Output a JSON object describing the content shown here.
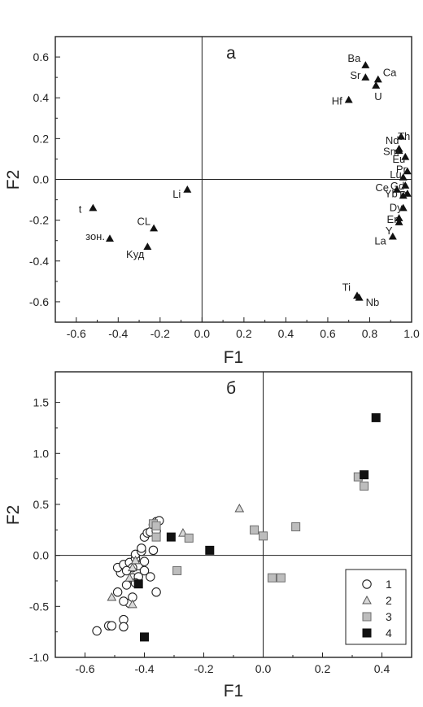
{
  "chart_data": [
    {
      "type": "scatter",
      "panel_letter": "а",
      "xlabel": "F1",
      "ylabel": "F2",
      "xlim": [
        -0.7,
        1.0
      ],
      "ylim": [
        -0.7,
        0.7
      ],
      "xticks": [
        "-0.6",
        "-0.4",
        "-0.2",
        "0.0",
        "0.2",
        "0.4",
        "0.6",
        "0.8",
        "1.0"
      ],
      "xtick_values": [
        -0.6,
        -0.4,
        -0.2,
        0.0,
        0.2,
        0.4,
        0.6,
        0.8,
        1.0
      ],
      "yticks": [
        "0.6",
        "0.4",
        "0.2",
        "0.0",
        "-0.2",
        "-0.4",
        "-0.6"
      ],
      "ytick_values": [
        0.6,
        0.4,
        0.2,
        0.0,
        -0.2,
        -0.4,
        -0.6
      ],
      "zero_lines": true,
      "grid": false,
      "points": [
        {
          "label": "Ba",
          "x": 0.78,
          "y": 0.56,
          "anchor": "end",
          "dx": -6,
          "dy": -4
        },
        {
          "label": "Ca",
          "x": 0.84,
          "y": 0.49,
          "anchor": "start",
          "dx": 6,
          "dy": -4
        },
        {
          "label": "Sr",
          "x": 0.78,
          "y": 0.5,
          "anchor": "end",
          "dx": -6,
          "dy": 2
        },
        {
          "label": "U",
          "x": 0.83,
          "y": 0.46,
          "anchor": "start",
          "dx": -2,
          "dy": 18
        },
        {
          "label": "Hf",
          "x": 0.7,
          "y": 0.39,
          "anchor": "end",
          "dx": -8,
          "dy": 6
        },
        {
          "label": "Th",
          "x": 0.95,
          "y": 0.21,
          "anchor": "start",
          "dx": -4,
          "dy": 4
        },
        {
          "label": "Nd",
          "x": 0.94,
          "y": 0.15,
          "anchor": "end",
          "dx": 0,
          "dy": -6
        },
        {
          "label": "Sm",
          "x": 0.94,
          "y": 0.14,
          "anchor": "end",
          "dx": 0,
          "dy": 5
        },
        {
          "label": "Eu",
          "x": 0.97,
          "y": 0.11,
          "anchor": "end",
          "dx": 0,
          "dy": 7
        },
        {
          "label": "Pr",
          "x": 0.98,
          "y": 0.04,
          "anchor": "end",
          "dx": -1,
          "dy": 2
        },
        {
          "label": "Lu",
          "x": 0.96,
          "y": 0.01,
          "anchor": "end",
          "dx": -2,
          "dy": 1
        },
        {
          "label": "Gd",
          "x": 0.97,
          "y": -0.03,
          "anchor": "end",
          "dx": -1,
          "dy": 5
        },
        {
          "label": "Ce",
          "x": 0.93,
          "y": -0.05,
          "anchor": "end",
          "dx": -10,
          "dy": 2
        },
        {
          "label": "P",
          "x": 0.98,
          "y": -0.07,
          "anchor": "end",
          "dx": -1,
          "dy": 6
        },
        {
          "label": "Yb",
          "x": 0.96,
          "y": -0.08,
          "anchor": "end",
          "dx": -7,
          "dy": 2
        },
        {
          "label": "Dy",
          "x": 0.96,
          "y": -0.14,
          "anchor": "end",
          "dx": -1,
          "dy": 4
        },
        {
          "label": "Er",
          "x": 0.94,
          "y": -0.19,
          "anchor": "end",
          "dx": -2,
          "dy": 6
        },
        {
          "label": "Y",
          "x": 0.94,
          "y": -0.21,
          "anchor": "end",
          "dx": -8,
          "dy": 15
        },
        {
          "label": "La",
          "x": 0.91,
          "y": -0.28,
          "anchor": "end",
          "dx": -8,
          "dy": 10
        },
        {
          "label": "Ti",
          "x": 0.74,
          "y": -0.57,
          "anchor": "end",
          "dx": -8,
          "dy": -6
        },
        {
          "label": "Nb",
          "x": 0.75,
          "y": -0.58,
          "anchor": "start",
          "dx": 8,
          "dy": 10
        },
        {
          "label": "Li",
          "x": -0.07,
          "y": -0.05,
          "anchor": "end",
          "dx": -8,
          "dy": 10
        },
        {
          "label": "t",
          "x": -0.52,
          "y": -0.14,
          "anchor": "end",
          "dx": -14,
          "dy": 6
        },
        {
          "label": "CL",
          "x": -0.23,
          "y": -0.24,
          "anchor": "end",
          "dx": -4,
          "dy": -4
        },
        {
          "label": "зон.",
          "x": -0.44,
          "y": -0.29,
          "anchor": "end",
          "dx": -6,
          "dy": 2
        },
        {
          "label": "Kуд",
          "x": -0.26,
          "y": -0.33,
          "anchor": "end",
          "dx": -4,
          "dy": 14
        }
      ]
    },
    {
      "type": "scatter",
      "panel_letter": "б",
      "xlabel": "F1",
      "ylabel": "F2",
      "xlim": [
        -0.7,
        0.5
      ],
      "ylim": [
        -1.0,
        1.8
      ],
      "xticks": [
        "-0.6",
        "-0.4",
        "-0.2",
        "0.0",
        "0.2",
        "0.4"
      ],
      "xtick_values": [
        -0.6,
        -0.4,
        -0.2,
        0.0,
        0.2,
        0.4
      ],
      "yticks": [
        "1.5",
        "1.0",
        "0.5",
        "0.0",
        "-0.5",
        "-1.0"
      ],
      "ytick_values": [
        1.5,
        1.0,
        0.5,
        0.0,
        -0.5,
        -1.0
      ],
      "zero_lines": true,
      "grid": false,
      "legend_position": "bottom-right",
      "series": [
        {
          "name": "1",
          "marker": "circle-open",
          "points": [
            [
              -0.56,
              -0.74
            ],
            [
              -0.52,
              -0.69
            ],
            [
              -0.51,
              -0.69
            ],
            [
              -0.47,
              -0.63
            ],
            [
              -0.47,
              -0.7
            ],
            [
              -0.45,
              -0.47
            ],
            [
              -0.47,
              -0.45
            ],
            [
              -0.44,
              -0.41
            ],
            [
              -0.49,
              -0.36
            ],
            [
              -0.46,
              -0.29
            ],
            [
              -0.44,
              -0.22
            ],
            [
              -0.48,
              -0.17
            ],
            [
              -0.49,
              -0.12
            ],
            [
              -0.47,
              -0.09
            ],
            [
              -0.45,
              -0.07
            ],
            [
              -0.43,
              -0.03
            ],
            [
              -0.43,
              0.01
            ],
            [
              -0.41,
              0.04
            ],
            [
              -0.41,
              0.07
            ],
            [
              -0.42,
              -0.1
            ],
            [
              -0.4,
              -0.06
            ],
            [
              -0.4,
              -0.15
            ],
            [
              -0.42,
              -0.21
            ],
            [
              -0.38,
              -0.21
            ],
            [
              -0.37,
              0.05
            ],
            [
              -0.4,
              0.18
            ],
            [
              -0.39,
              0.22
            ],
            [
              -0.38,
              0.23
            ],
            [
              -0.36,
              0.24
            ],
            [
              -0.37,
              0.3
            ],
            [
              -0.36,
              0.33
            ],
            [
              -0.35,
              0.34
            ],
            [
              -0.36,
              -0.36
            ],
            [
              -0.44,
              -0.12
            ],
            [
              -0.46,
              -0.15
            ],
            [
              -0.43,
              -0.27
            ]
          ]
        },
        {
          "name": "2",
          "marker": "triangle-open",
          "points": [
            [
              -0.51,
              -0.41
            ],
            [
              -0.44,
              -0.48
            ],
            [
              -0.45,
              -0.22
            ],
            [
              -0.44,
              -0.12
            ],
            [
              -0.43,
              -0.05
            ],
            [
              -0.27,
              0.22
            ],
            [
              -0.08,
              0.46
            ]
          ]
        },
        {
          "name": "3",
          "marker": "square-grey",
          "points": [
            [
              -0.37,
              0.31
            ],
            [
              -0.36,
              0.29
            ],
            [
              -0.36,
              0.18
            ],
            [
              -0.25,
              0.17
            ],
            [
              -0.29,
              -0.15
            ],
            [
              -0.03,
              0.25
            ],
            [
              0.0,
              0.19
            ],
            [
              0.03,
              -0.22
            ],
            [
              0.06,
              -0.22
            ],
            [
              0.11,
              0.28
            ],
            [
              0.32,
              0.77
            ],
            [
              0.34,
              0.68
            ]
          ]
        },
        {
          "name": "4",
          "marker": "square-black",
          "points": [
            [
              -0.42,
              -0.28
            ],
            [
              -0.4,
              -0.8
            ],
            [
              -0.31,
              0.18
            ],
            [
              -0.18,
              0.05
            ],
            [
              0.34,
              0.79
            ],
            [
              0.38,
              1.35
            ]
          ]
        }
      ]
    }
  ]
}
